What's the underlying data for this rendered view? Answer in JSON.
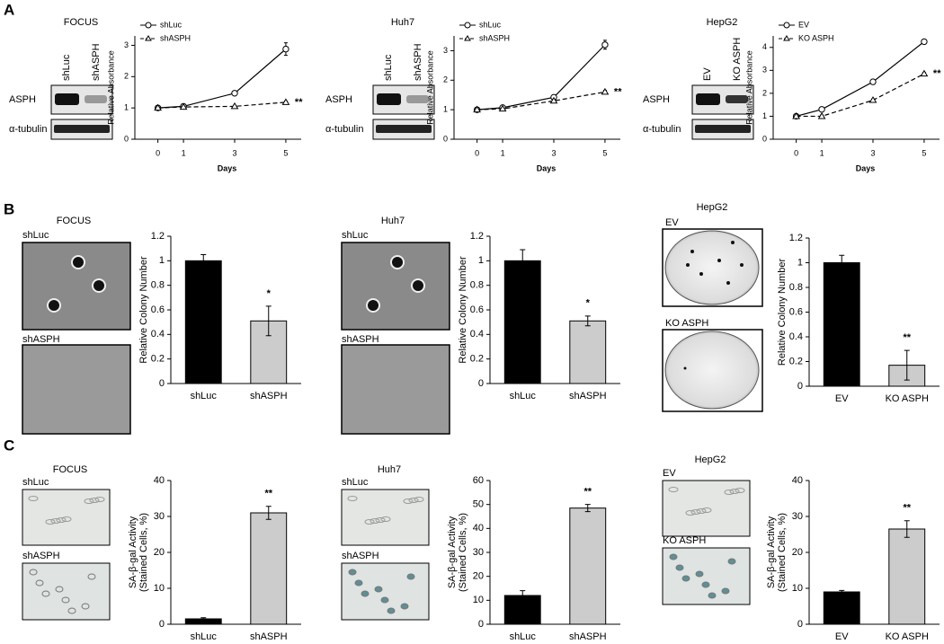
{
  "panel_labels": [
    "A",
    "B",
    "C"
  ],
  "blots": [
    {
      "title": "FOCUS",
      "lanes": [
        "shLuc",
        "shASPH"
      ],
      "rows": [
        "ASPH",
        "α-tubulin"
      ]
    },
    {
      "title": "Huh7",
      "lanes": [
        "shLuc",
        "shASPH"
      ],
      "rows": [
        "ASPH",
        "α-tubulin"
      ]
    },
    {
      "title": "HepG2",
      "lanes": [
        "EV",
        "KO ASPH"
      ],
      "rows": [
        "ASPH",
        "α-tubulin"
      ]
    }
  ],
  "colony_images": [
    {
      "title": "FOCUS",
      "labels": [
        "shLuc",
        "shASPH"
      ]
    },
    {
      "title": "Huh7",
      "labels": [
        "shLuc",
        "shASPH"
      ]
    },
    {
      "title": "HepG2",
      "labels": [
        "EV",
        "KO ASPH"
      ]
    }
  ],
  "stain_images": [
    {
      "title": "FOCUS",
      "labels": [
        "shLuc",
        "shASPH"
      ]
    },
    {
      "title": "Huh7",
      "labels": [
        "shLuc",
        "shASPH"
      ]
    },
    {
      "title": "HepG2",
      "labels": [
        "EV",
        "KO ASPH"
      ]
    }
  ],
  "chart_data": [
    {
      "type": "line",
      "x": [
        0,
        1,
        3,
        5
      ],
      "xlim": [
        -0.9,
        5.6
      ],
      "xticks": [
        0,
        1,
        3,
        5
      ],
      "xlabel": "Days",
      "ylabel": "Relative Absorbance",
      "ylim": [
        0,
        3.3
      ],
      "yticks": [
        0,
        1,
        2,
        3
      ],
      "series": [
        {
          "name": "shLuc",
          "color": "#000000",
          "marker": "circle",
          "line_style": "solid",
          "values": [
            1,
            1.05,
            1.47,
            2.88
          ],
          "errors": [
            0.03,
            0.05,
            0.06,
            0.2
          ]
        },
        {
          "name": "shASPH",
          "color": "#000000",
          "marker": "triangle",
          "line_style": "dashed",
          "values": [
            1,
            1.03,
            1.05,
            1.18
          ],
          "errors": [
            0.03,
            0.03,
            0.03,
            0.04
          ],
          "annotation": "**"
        }
      ]
    },
    {
      "type": "line",
      "x": [
        0,
        1,
        3,
        5
      ],
      "xlim": [
        -0.9,
        5.6
      ],
      "xticks": [
        0,
        1,
        3,
        5
      ],
      "xlabel": "Days",
      "ylabel": "Relative Absorbance",
      "ylim": [
        0,
        3.5
      ],
      "yticks": [
        0,
        1,
        2,
        3
      ],
      "series": [
        {
          "name": "shLuc",
          "color": "#000000",
          "marker": "circle",
          "line_style": "solid",
          "values": [
            1,
            1.07,
            1.42,
            3.2
          ],
          "errors": [
            0.03,
            0.05,
            0.08,
            0.15
          ]
        },
        {
          "name": "shASPH",
          "color": "#000000",
          "marker": "triangle",
          "line_style": "dashed",
          "values": [
            1,
            1.03,
            1.3,
            1.6
          ],
          "errors": [
            0.03,
            0.03,
            0.05,
            0.06
          ],
          "annotation": "**"
        }
      ]
    },
    {
      "type": "line",
      "x": [
        0,
        1,
        3,
        5
      ],
      "xlim": [
        -0.9,
        5.6
      ],
      "xticks": [
        0,
        1,
        3,
        5
      ],
      "xlabel": "Days",
      "ylabel": "Relative Absorbance",
      "ylim": [
        0,
        4.5
      ],
      "yticks": [
        0,
        1,
        2,
        3,
        4
      ],
      "series": [
        {
          "name": "EV",
          "color": "#000000",
          "marker": "circle",
          "line_style": "solid",
          "values": [
            1,
            1.3,
            2.5,
            4.25
          ],
          "errors": [
            0.05,
            0.05,
            0.06,
            0.08
          ]
        },
        {
          "name": "KO ASPH",
          "color": "#000000",
          "marker": "triangle",
          "line_style": "dashed",
          "values": [
            1,
            1,
            1.7,
            2.85
          ],
          "errors": [
            0.05,
            0.05,
            0.05,
            0.06
          ],
          "annotation": "**"
        }
      ]
    },
    {
      "type": "bar",
      "categories": [
        "shLuc",
        "shASPH"
      ],
      "values": [
        1,
        0.51
      ],
      "errors": [
        0.05,
        0.12
      ],
      "colors": [
        "#000000",
        "#cccccc"
      ],
      "value_annotations": [
        null,
        "*"
      ],
      "ylabel": "Relative Colony Number",
      "ylim": [
        0,
        1.2
      ],
      "yticks": [
        0,
        0.2,
        0.4,
        0.6,
        0.8,
        1,
        1.2
      ]
    },
    {
      "type": "bar",
      "categories": [
        "shLuc",
        "shASPH"
      ],
      "values": [
        1,
        0.51
      ],
      "errors": [
        0.09,
        0.04
      ],
      "colors": [
        "#000000",
        "#cccccc"
      ],
      "value_annotations": [
        null,
        "*"
      ],
      "ylabel": "Relative Colony Number",
      "ylim": [
        0,
        1.2
      ],
      "yticks": [
        0,
        0.2,
        0.4,
        0.6,
        0.8,
        1,
        1.2
      ]
    },
    {
      "type": "bar",
      "categories": [
        "EV",
        "KO ASPH"
      ],
      "values": [
        1,
        0.17
      ],
      "errors": [
        0.06,
        0.12
      ],
      "colors": [
        "#000000",
        "#cccccc"
      ],
      "value_annotations": [
        null,
        "**"
      ],
      "ylabel": "Relative Colony Number",
      "ylim": [
        0,
        1.2
      ],
      "yticks": [
        0,
        0.2,
        0.4,
        0.6,
        0.8,
        1,
        1.2
      ]
    },
    {
      "type": "bar",
      "categories": [
        "shLuc",
        "shASPH"
      ],
      "values": [
        1.5,
        31
      ],
      "errors": [
        0.3,
        1.8
      ],
      "colors": [
        "#000000",
        "#cccccc"
      ],
      "value_annotations": [
        null,
        "**"
      ],
      "ylabel": [
        "SA-β-gal Activity",
        "(Stained Cells, %)"
      ],
      "ylim": [
        0,
        40
      ],
      "yticks": [
        0,
        10,
        20,
        30,
        40
      ]
    },
    {
      "type": "bar",
      "categories": [
        "shLuc",
        "shASPH"
      ],
      "values": [
        12,
        48.5
      ],
      "errors": [
        2,
        1.5
      ],
      "colors": [
        "#000000",
        "#cccccc"
      ],
      "value_annotations": [
        null,
        "**"
      ],
      "ylabel": [
        "SA-β-gal Activity",
        "(Stained Cells, %)"
      ],
      "ylim": [
        0,
        60
      ],
      "yticks": [
        0,
        10,
        20,
        30,
        40,
        50,
        60
      ]
    },
    {
      "type": "bar",
      "categories": [
        "EV",
        "KO ASPH"
      ],
      "values": [
        9,
        26.5
      ],
      "errors": [
        0.4,
        2.3
      ],
      "colors": [
        "#000000",
        "#cccccc"
      ],
      "value_annotations": [
        null,
        "**"
      ],
      "ylabel": [
        "SA-β-gal Activity",
        "(Stained Cells, %)"
      ],
      "ylim": [
        0,
        40
      ],
      "yticks": [
        0,
        10,
        20,
        30,
        40
      ]
    }
  ]
}
